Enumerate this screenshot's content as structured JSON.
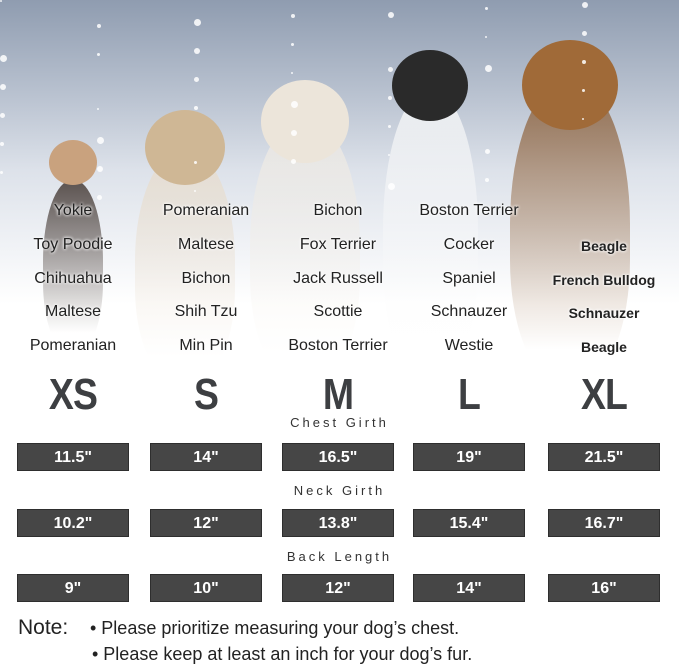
{
  "sizes": [
    "XS",
    "S",
    "M",
    "L",
    "XL"
  ],
  "breeds": [
    [
      "Yokie",
      "Toy Poodie",
      "Chihuahua",
      "Maltese",
      "Pomeranian"
    ],
    [
      "Pomeranian",
      "Maltese",
      "Bichon",
      "Shih Tzu",
      "Min Pin"
    ],
    [
      "Bichon",
      "Fox Terrier",
      "Jack Russell",
      "Scottie",
      "Boston Terrier"
    ],
    [
      "Boston Terrier",
      "Cocker",
      "Spaniel",
      "Schnauzer",
      "Westie"
    ],
    [
      "",
      "Beagle",
      "French Bulldog",
      "Schnauzer",
      "Beagle"
    ]
  ],
  "measurements": [
    {
      "label": "Chest Girth",
      "values": [
        "11.5\"",
        "14\"",
        "16.5\"",
        "19\"",
        "21.5\""
      ]
    },
    {
      "label": "Neck Girth",
      "values": [
        "10.2\"",
        "12\"",
        "13.8\"",
        "15.4\"",
        "16.7\""
      ]
    },
    {
      "label": "Back Length",
      "values": [
        "9\"",
        "10\"",
        "12\"",
        "14\"",
        "16\""
      ]
    }
  ],
  "note": {
    "title": "Note:",
    "items": [
      "• Please prioritize measuring your dog’s chest.",
      "• Please keep at least an inch for your dog’s fur."
    ]
  },
  "colors": {
    "box": "#464646",
    "size_text": "#3d3f42"
  }
}
